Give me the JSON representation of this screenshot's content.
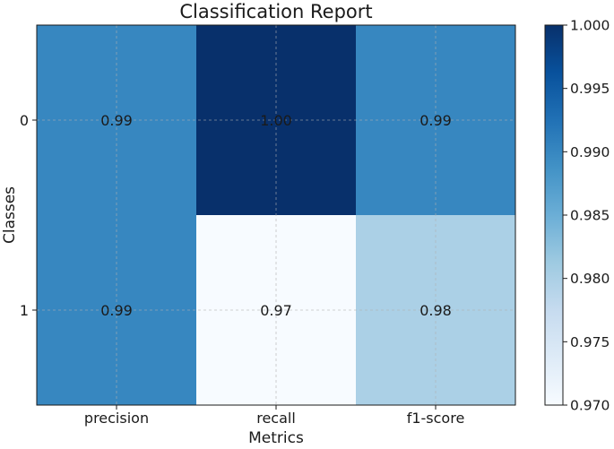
{
  "chart_data": {
    "type": "heatmap",
    "title": "Classification Report",
    "xlabel": "Metrics",
    "ylabel": "Classes",
    "x_categories": [
      "precision",
      "recall",
      "f1-score"
    ],
    "y_categories": [
      "0",
      "1"
    ],
    "values": [
      [
        0.99,
        1.0,
        0.99
      ],
      [
        0.99,
        0.97,
        0.98
      ]
    ],
    "cell_labels": [
      [
        "0.99",
        "1.00",
        "0.99"
      ],
      [
        "0.99",
        "0.97",
        "0.98"
      ]
    ],
    "color_scale": {
      "name": "Blues",
      "min": 0.97,
      "max": 1.0,
      "ticks": [
        "1.000",
        "0.995",
        "0.990",
        "0.985",
        "0.980",
        "0.975",
        "0.970"
      ],
      "tick_values": [
        1.0,
        0.995,
        0.99,
        0.985,
        0.98,
        0.975,
        0.97
      ]
    },
    "grid": true,
    "colorbar": "right"
  }
}
